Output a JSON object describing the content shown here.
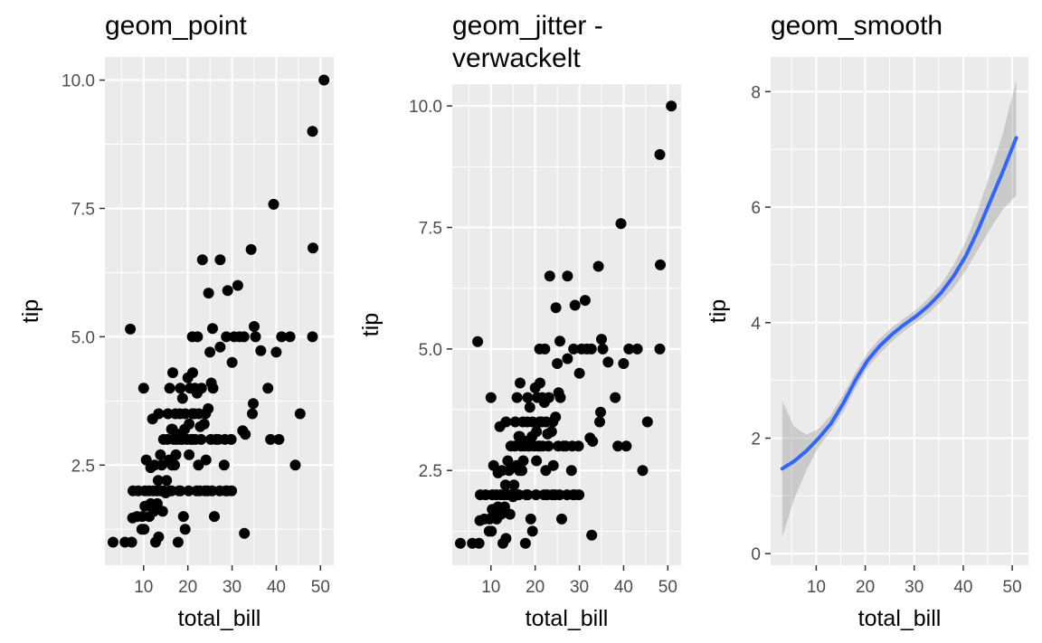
{
  "chart_data": [
    {
      "type": "scatter",
      "title": "geom_point",
      "xlabel": "total_bill",
      "ylabel": "tip",
      "xlim": [
        1.25,
        53.0
      ],
      "ylim": [
        0.55,
        10.45
      ],
      "x_ticks": [
        10,
        20,
        30,
        40,
        50
      ],
      "y_ticks": [
        2.5,
        5.0,
        7.5,
        10.0
      ],
      "x_tick_labels": [
        "10",
        "20",
        "30",
        "40",
        "50"
      ],
      "y_tick_labels": [
        "2.5",
        "5.0",
        "7.5",
        "10.0"
      ],
      "grid": true,
      "points": [
        [
          3.1,
          1.0
        ],
        [
          5.8,
          1.0
        ],
        [
          7.3,
          1.0
        ],
        [
          7.0,
          5.15
        ],
        [
          7.5,
          1.47
        ],
        [
          7.6,
          2.0
        ],
        [
          8.5,
          1.5
        ],
        [
          8.8,
          2.0
        ],
        [
          9.6,
          1.25
        ],
        [
          9.7,
          1.5
        ],
        [
          10.1,
          1.25
        ],
        [
          10.3,
          2.0
        ],
        [
          10.3,
          1.7
        ],
        [
          10.0,
          4.0
        ],
        [
          10.6,
          2.6
        ],
        [
          11.2,
          2.0
        ],
        [
          11.3,
          1.5
        ],
        [
          11.6,
          1.75
        ],
        [
          11.6,
          2.45
        ],
        [
          12.0,
          3.4
        ],
        [
          12.2,
          2.0
        ],
        [
          12.3,
          1.6
        ],
        [
          12.5,
          2.5
        ],
        [
          12.7,
          1.0
        ],
        [
          13.0,
          2.0
        ],
        [
          13.1,
          1.75
        ],
        [
          13.4,
          3.5
        ],
        [
          13.3,
          2.2
        ],
        [
          13.4,
          1.1
        ],
        [
          13.8,
          2.0
        ],
        [
          13.8,
          2.7
        ],
        [
          14.1,
          2.5
        ],
        [
          14.3,
          1.6
        ],
        [
          14.5,
          2.0
        ],
        [
          14.5,
          3.0
        ],
        [
          15.0,
          1.96
        ],
        [
          15.2,
          2.2
        ],
        [
          15.4,
          3.0
        ],
        [
          15.5,
          3.5
        ],
        [
          15.8,
          2.6
        ],
        [
          15.9,
          2.0
        ],
        [
          15.9,
          4.0
        ],
        [
          16.3,
          2.0
        ],
        [
          16.3,
          3.2
        ],
        [
          16.4,
          2.5
        ],
        [
          16.5,
          3.2
        ],
        [
          16.6,
          4.3
        ],
        [
          16.8,
          3.0
        ],
        [
          17.0,
          2.5
        ],
        [
          17.2,
          3.5
        ],
        [
          17.3,
          2.7
        ],
        [
          17.5,
          3.0
        ],
        [
          17.8,
          1.0
        ],
        [
          17.9,
          3.1
        ],
        [
          18.0,
          2.0
        ],
        [
          18.2,
          3.5
        ],
        [
          18.3,
          4.0
        ],
        [
          18.4,
          3.0
        ],
        [
          18.3,
          2.0
        ],
        [
          18.7,
          3.0
        ],
        [
          18.8,
          3.8
        ],
        [
          19.0,
          1.5
        ],
        [
          19.3,
          3.2
        ],
        [
          19.4,
          1.25
        ],
        [
          19.4,
          3.5
        ],
        [
          19.8,
          3.0
        ],
        [
          20.0,
          4.2
        ],
        [
          20.2,
          2.0
        ],
        [
          20.3,
          3.3
        ],
        [
          20.3,
          2.7
        ],
        [
          20.5,
          4.0
        ],
        [
          20.7,
          3.0
        ],
        [
          21.0,
          3.5
        ],
        [
          21.0,
          5.0
        ],
        [
          21.0,
          3.0
        ],
        [
          21.1,
          4.3
        ],
        [
          21.5,
          3.5
        ],
        [
          21.6,
          4.0
        ],
        [
          21.7,
          3.0
        ],
        [
          22.0,
          2.0
        ],
        [
          22.1,
          3.9
        ],
        [
          22.2,
          5.0
        ],
        [
          22.4,
          2.5
        ],
        [
          22.5,
          3.5
        ],
        [
          22.7,
          2.0
        ],
        [
          22.8,
          3.25
        ],
        [
          23.0,
          3.0
        ],
        [
          23.1,
          4.0
        ],
        [
          23.3,
          6.5
        ],
        [
          23.7,
          3.3
        ],
        [
          23.9,
          2.0
        ],
        [
          24.0,
          3.5
        ],
        [
          24.1,
          2.6
        ],
        [
          24.5,
          2.0
        ],
        [
          24.6,
          3.6
        ],
        [
          24.7,
          5.85
        ],
        [
          25.0,
          4.7
        ],
        [
          25.2,
          3.0
        ],
        [
          25.3,
          4.1
        ],
        [
          25.5,
          2.0
        ],
        [
          25.6,
          5.16
        ],
        [
          25.7,
          4.0
        ],
        [
          26.0,
          1.5
        ],
        [
          26.4,
          3.0
        ],
        [
          26.9,
          3.0
        ],
        [
          27.2,
          2.0
        ],
        [
          27.3,
          6.5
        ],
        [
          27.3,
          4.8
        ],
        [
          28.2,
          2.5
        ],
        [
          28.4,
          3.0
        ],
        [
          28.6,
          2.0
        ],
        [
          28.7,
          5.0
        ],
        [
          28.9,
          2.0
        ],
        [
          29.0,
          5.9
        ],
        [
          29.8,
          3.0
        ],
        [
          29.9,
          2.0
        ],
        [
          30.0,
          4.5
        ],
        [
          30.5,
          5.0
        ],
        [
          31.3,
          6.0
        ],
        [
          31.7,
          5.0
        ],
        [
          32.4,
          3.17
        ],
        [
          32.7,
          5.0
        ],
        [
          32.8,
          1.17
        ],
        [
          33.0,
          3.1
        ],
        [
          34.3,
          6.7
        ],
        [
          34.6,
          3.5
        ],
        [
          34.8,
          3.7
        ],
        [
          35.0,
          5.2
        ],
        [
          35.3,
          5.0
        ],
        [
          36.5,
          4.73
        ],
        [
          38.1,
          4.0
        ],
        [
          38.7,
          3.0
        ],
        [
          39.4,
          7.58
        ],
        [
          40.0,
          4.7
        ],
        [
          40.6,
          3.0
        ],
        [
          41.2,
          5.0
        ],
        [
          43.1,
          5.0
        ],
        [
          44.3,
          2.5
        ],
        [
          45.4,
          3.5
        ],
        [
          48.2,
          9.0
        ],
        [
          48.3,
          6.73
        ],
        [
          48.2,
          5.0
        ],
        [
          50.8,
          10.0
        ]
      ],
      "point_color": "#000000"
    },
    {
      "type": "scatter",
      "title": "geom_jitter -\nverwackelt",
      "title_lines": [
        "geom_jitter -",
        "verwackelt"
      ],
      "xlabel": "total_bill",
      "ylabel": "tip",
      "xlim": [
        1.25,
        53.0
      ],
      "ylim": [
        0.55,
        10.45
      ],
      "x_ticks": [
        10,
        20,
        30,
        40,
        50
      ],
      "y_ticks": [
        2.5,
        5.0,
        7.5,
        10.0
      ],
      "x_tick_labels": [
        "10",
        "20",
        "30",
        "40",
        "50"
      ],
      "y_tick_labels": [
        "2.5",
        "5.0",
        "7.5",
        "10.0"
      ],
      "grid": true,
      "points": [
        [
          3.1,
          1.0
        ],
        [
          5.8,
          1.0
        ],
        [
          7.3,
          1.0
        ],
        [
          7.0,
          5.15
        ],
        [
          7.5,
          1.47
        ],
        [
          7.6,
          2.0
        ],
        [
          8.5,
          1.5
        ],
        [
          8.8,
          2.0
        ],
        [
          9.6,
          1.25
        ],
        [
          9.7,
          1.5
        ],
        [
          10.1,
          1.25
        ],
        [
          10.3,
          2.0
        ],
        [
          10.3,
          1.7
        ],
        [
          10.0,
          4.0
        ],
        [
          10.6,
          2.6
        ],
        [
          11.2,
          2.0
        ],
        [
          11.3,
          1.5
        ],
        [
          11.6,
          1.75
        ],
        [
          11.6,
          2.45
        ],
        [
          12.0,
          3.4
        ],
        [
          12.2,
          2.0
        ],
        [
          12.3,
          1.6
        ],
        [
          12.5,
          2.5
        ],
        [
          12.7,
          1.0
        ],
        [
          13.0,
          2.0
        ],
        [
          13.1,
          1.75
        ],
        [
          13.4,
          3.5
        ],
        [
          13.3,
          2.2
        ],
        [
          13.4,
          1.1
        ],
        [
          13.8,
          2.0
        ],
        [
          13.8,
          2.7
        ],
        [
          14.1,
          2.5
        ],
        [
          14.3,
          1.6
        ],
        [
          14.5,
          2.0
        ],
        [
          14.5,
          3.0
        ],
        [
          15.0,
          1.96
        ],
        [
          15.2,
          2.2
        ],
        [
          15.4,
          3.0
        ],
        [
          15.5,
          3.5
        ],
        [
          15.8,
          2.6
        ],
        [
          15.9,
          2.0
        ],
        [
          15.9,
          4.0
        ],
        [
          16.3,
          2.0
        ],
        [
          16.3,
          3.2
        ],
        [
          16.4,
          2.5
        ],
        [
          16.5,
          3.2
        ],
        [
          16.6,
          4.3
        ],
        [
          16.8,
          3.0
        ],
        [
          17.0,
          2.5
        ],
        [
          17.2,
          3.5
        ],
        [
          17.3,
          2.7
        ],
        [
          17.5,
          3.0
        ],
        [
          17.8,
          1.0
        ],
        [
          17.9,
          3.1
        ],
        [
          18.0,
          2.0
        ],
        [
          18.2,
          3.5
        ],
        [
          18.3,
          4.0
        ],
        [
          18.4,
          3.0
        ],
        [
          18.3,
          2.0
        ],
        [
          18.7,
          3.0
        ],
        [
          18.8,
          3.8
        ],
        [
          19.0,
          1.5
        ],
        [
          19.3,
          3.2
        ],
        [
          19.4,
          1.25
        ],
        [
          19.4,
          3.5
        ],
        [
          19.8,
          3.0
        ],
        [
          20.0,
          4.2
        ],
        [
          20.2,
          2.0
        ],
        [
          20.3,
          3.3
        ],
        [
          20.3,
          2.7
        ],
        [
          20.5,
          4.0
        ],
        [
          20.7,
          3.0
        ],
        [
          21.0,
          3.5
        ],
        [
          21.0,
          5.0
        ],
        [
          21.0,
          3.0
        ],
        [
          21.1,
          4.3
        ],
        [
          21.5,
          3.5
        ],
        [
          21.6,
          4.0
        ],
        [
          21.7,
          3.0
        ],
        [
          22.0,
          2.0
        ],
        [
          22.1,
          3.9
        ],
        [
          22.2,
          5.0
        ],
        [
          22.4,
          2.5
        ],
        [
          22.5,
          3.5
        ],
        [
          22.7,
          2.0
        ],
        [
          22.8,
          3.25
        ],
        [
          23.0,
          3.0
        ],
        [
          23.1,
          4.0
        ],
        [
          23.3,
          6.5
        ],
        [
          23.7,
          3.3
        ],
        [
          23.9,
          2.0
        ],
        [
          24.0,
          3.5
        ],
        [
          24.1,
          2.6
        ],
        [
          24.5,
          2.0
        ],
        [
          24.6,
          3.6
        ],
        [
          24.7,
          5.85
        ],
        [
          25.0,
          4.7
        ],
        [
          25.2,
          3.0
        ],
        [
          25.3,
          4.1
        ],
        [
          25.5,
          2.0
        ],
        [
          25.6,
          5.16
        ],
        [
          25.7,
          4.0
        ],
        [
          26.0,
          1.5
        ],
        [
          26.4,
          3.0
        ],
        [
          26.9,
          3.0
        ],
        [
          27.2,
          2.0
        ],
        [
          27.3,
          6.5
        ],
        [
          27.3,
          4.8
        ],
        [
          28.2,
          2.5
        ],
        [
          28.4,
          3.0
        ],
        [
          28.6,
          2.0
        ],
        [
          28.7,
          5.0
        ],
        [
          28.9,
          2.0
        ],
        [
          29.0,
          5.9
        ],
        [
          29.8,
          3.0
        ],
        [
          29.9,
          2.0
        ],
        [
          30.0,
          4.5
        ],
        [
          30.5,
          5.0
        ],
        [
          31.3,
          6.0
        ],
        [
          31.7,
          5.0
        ],
        [
          32.4,
          3.17
        ],
        [
          32.7,
          5.0
        ],
        [
          32.8,
          1.17
        ],
        [
          33.0,
          3.1
        ],
        [
          34.3,
          6.7
        ],
        [
          34.6,
          3.5
        ],
        [
          34.8,
          3.7
        ],
        [
          35.0,
          5.2
        ],
        [
          35.3,
          5.0
        ],
        [
          36.5,
          4.73
        ],
        [
          38.1,
          4.0
        ],
        [
          38.7,
          3.0
        ],
        [
          39.4,
          7.58
        ],
        [
          40.0,
          4.7
        ],
        [
          40.6,
          3.0
        ],
        [
          41.2,
          5.0
        ],
        [
          43.1,
          5.0
        ],
        [
          44.3,
          2.5
        ],
        [
          45.4,
          3.5
        ],
        [
          48.2,
          9.0
        ],
        [
          48.3,
          6.73
        ],
        [
          48.2,
          5.0
        ],
        [
          50.8,
          10.0
        ]
      ],
      "point_color": "#000000"
    },
    {
      "type": "line",
      "title": "geom_smooth",
      "xlabel": "total_bill",
      "ylabel": "tip",
      "xlim": [
        0.7,
        53.3
      ],
      "ylim": [
        -0.2,
        8.6
      ],
      "x_ticks": [
        10,
        20,
        30,
        40,
        50
      ],
      "y_ticks": [
        0,
        2,
        4,
        6,
        8
      ],
      "x_tick_labels": [
        "10",
        "20",
        "30",
        "40",
        "50"
      ],
      "y_tick_labels": [
        "0",
        "2",
        "4",
        "6",
        "8"
      ],
      "grid": true,
      "x": [
        3.07,
        5.5,
        8,
        10.5,
        13,
        15.5,
        18,
        20.5,
        23,
        25.5,
        28,
        30.5,
        33,
        35.5,
        38,
        40.5,
        43,
        45.5,
        48,
        50.81
      ],
      "y": [
        1.47,
        1.6,
        1.78,
        2.0,
        2.25,
        2.6,
        3.0,
        3.35,
        3.6,
        3.8,
        3.97,
        4.12,
        4.3,
        4.52,
        4.8,
        5.15,
        5.6,
        6.1,
        6.6,
        7.2
      ],
      "ci_lower": [
        0.28,
        0.95,
        1.45,
        1.85,
        2.12,
        2.45,
        2.86,
        3.22,
        3.47,
        3.68,
        3.86,
        4.01,
        4.17,
        4.37,
        4.6,
        4.9,
        5.26,
        5.62,
        5.95,
        6.2
      ],
      "ci_upper": [
        2.65,
        2.2,
        2.06,
        2.16,
        2.4,
        2.75,
        3.14,
        3.48,
        3.73,
        3.92,
        4.08,
        4.23,
        4.43,
        4.67,
        5.0,
        5.4,
        5.95,
        6.58,
        7.25,
        8.2
      ],
      "line_color": "#3366FF",
      "ribbon_color": "#999999"
    }
  ]
}
